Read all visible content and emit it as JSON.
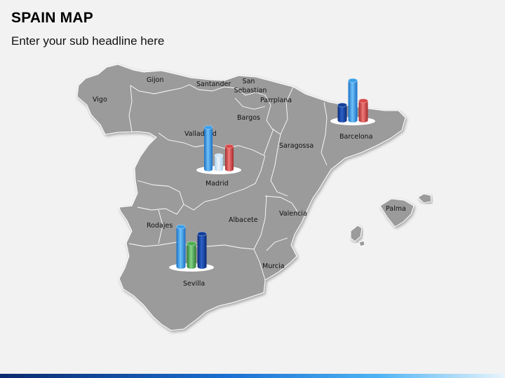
{
  "header": {
    "title": "SPAIN MAP",
    "subtitle": "Enter your sub headline here"
  },
  "colors": {
    "land": "#9b9b9b",
    "land_border": "#ffffff",
    "background": "#f2f2f2",
    "bar_blue_light": "#3aa0ea",
    "bar_blue_dark": "#123e9a",
    "bar_red": "#d94848",
    "bar_green": "#4caf4f",
    "bar_pale_blue": "#cfe6f7"
  },
  "cities": [
    {
      "name": "Gijon"
    },
    {
      "name": "Santander"
    },
    {
      "name": "San Sebastian",
      "lines": [
        "San",
        "Sebastian"
      ]
    },
    {
      "name": "Vigo"
    },
    {
      "name": "Parrplana"
    },
    {
      "name": "Bargos"
    },
    {
      "name": "Valladolid"
    },
    {
      "name": "Saragossa"
    },
    {
      "name": "Barcelona"
    },
    {
      "name": "Madrid"
    },
    {
      "name": "Albacete"
    },
    {
      "name": "Valencia"
    },
    {
      "name": "Palma"
    },
    {
      "name": "Rodajes"
    },
    {
      "name": "Murcia"
    },
    {
      "name": "Sevilla"
    }
  ],
  "bar_groups": [
    {
      "city": "Madrid",
      "bars": [
        {
          "color": "bar_blue_light",
          "value": 60
        },
        {
          "color": "bar_pale_blue",
          "value": 20
        },
        {
          "color": "bar_red",
          "value": 33
        }
      ]
    },
    {
      "city": "Barcelona",
      "bars": [
        {
          "color": "bar_blue_dark",
          "value": 22
        },
        {
          "color": "bar_blue_light",
          "value": 57
        },
        {
          "color": "bar_red",
          "value": 28
        }
      ]
    },
    {
      "city": "Sevilla",
      "bars": [
        {
          "color": "bar_blue_light",
          "value": 57
        },
        {
          "color": "bar_green",
          "value": 33
        },
        {
          "color": "bar_blue_dark",
          "value": 47
        }
      ]
    }
  ]
}
